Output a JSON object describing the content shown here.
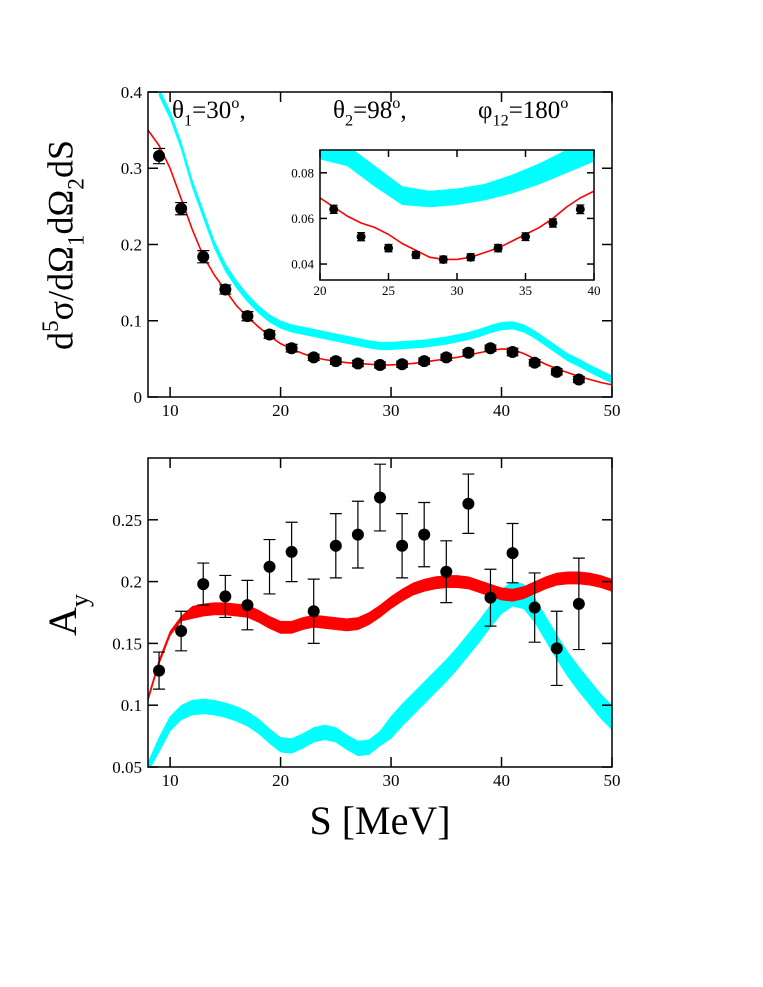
{
  "chart_data": [
    {
      "type": "combo",
      "xlim": [
        8,
        50
      ],
      "ylim": [
        0,
        0.4
      ],
      "xticks": [
        10,
        20,
        30,
        40,
        50
      ],
      "yticks": [
        0,
        0.1,
        0.2,
        0.3,
        0.4
      ],
      "ylabel": [
        "d",
        "5",
        "σ/dΩ",
        "1",
        "dΩ",
        "2",
        "dS"
      ],
      "annotations": [
        [
          "θ",
          "1",
          "=30",
          "o",
          ","
        ],
        [
          "θ",
          "2",
          "=98",
          "o",
          ","
        ],
        [
          "φ",
          "12",
          "=180",
          "o"
        ]
      ],
      "series": [
        {
          "type": "band",
          "color": "#00ffff",
          "x": [
            9,
            10,
            11,
            12,
            13,
            14,
            15,
            16,
            17,
            18,
            19,
            20,
            21,
            22,
            23,
            24,
            25,
            26,
            27,
            28,
            29,
            30,
            31,
            32,
            33,
            34,
            35,
            36,
            37,
            38,
            39,
            40,
            41,
            42,
            43,
            44,
            45,
            46,
            47,
            48,
            49,
            50
          ],
          "lower": [
            0.395,
            0.365,
            0.325,
            0.275,
            0.235,
            0.195,
            0.165,
            0.143,
            0.125,
            0.11,
            0.098,
            0.09,
            0.085,
            0.082,
            0.079,
            0.076,
            0.073,
            0.07,
            0.067,
            0.064,
            0.062,
            0.062,
            0.063,
            0.064,
            0.065,
            0.067,
            0.069,
            0.072,
            0.075,
            0.079,
            0.084,
            0.088,
            0.089,
            0.085,
            0.077,
            0.067,
            0.057,
            0.047,
            0.04,
            0.032,
            0.025,
            0.018
          ],
          "upper": [
            0.405,
            0.375,
            0.335,
            0.285,
            0.245,
            0.205,
            0.175,
            0.153,
            0.135,
            0.12,
            0.108,
            0.1,
            0.095,
            0.092,
            0.089,
            0.086,
            0.083,
            0.08,
            0.077,
            0.074,
            0.072,
            0.072,
            0.073,
            0.074,
            0.075,
            0.077,
            0.079,
            0.082,
            0.085,
            0.089,
            0.094,
            0.098,
            0.099,
            0.095,
            0.087,
            0.077,
            0.067,
            0.057,
            0.05,
            0.042,
            0.035,
            0.028
          ]
        },
        {
          "type": "line",
          "color": "#ff0000",
          "x": [
            8,
            9,
            10,
            11,
            12,
            13,
            14,
            15,
            16,
            17,
            18,
            19,
            20,
            21,
            22,
            23,
            24,
            25,
            26,
            27,
            28,
            29,
            30,
            31,
            32,
            33,
            34,
            35,
            36,
            37,
            38,
            39,
            40,
            41,
            42,
            43,
            44,
            45,
            46,
            47,
            48,
            49,
            50
          ],
          "values": [
            0.35,
            0.33,
            0.3,
            0.26,
            0.22,
            0.185,
            0.16,
            0.14,
            0.12,
            0.105,
            0.092,
            0.08,
            0.07,
            0.063,
            0.057,
            0.052,
            0.049,
            0.047,
            0.045,
            0.044,
            0.043,
            0.042,
            0.042,
            0.043,
            0.044,
            0.046,
            0.048,
            0.05,
            0.052,
            0.055,
            0.058,
            0.061,
            0.063,
            0.062,
            0.057,
            0.05,
            0.043,
            0.037,
            0.032,
            0.027,
            0.023,
            0.019,
            0.016
          ]
        },
        {
          "type": "errorbar",
          "color": "#000000",
          "x": [
            9,
            11,
            13,
            15,
            17,
            19,
            21,
            23,
            25,
            27,
            29,
            31,
            33,
            35,
            37,
            39,
            41,
            43,
            45,
            47
          ],
          "values": [
            0.316,
            0.247,
            0.184,
            0.141,
            0.106,
            0.082,
            0.064,
            0.052,
            0.047,
            0.044,
            0.042,
            0.043,
            0.047,
            0.052,
            0.058,
            0.064,
            0.059,
            0.045,
            0.033,
            0.023
          ],
          "errors": [
            0.01,
            0.008,
            0.008,
            0.006,
            0.006,
            0.005,
            0.005,
            0.004,
            0.004,
            0.004,
            0.004,
            0.004,
            0.004,
            0.004,
            0.004,
            0.004,
            0.005,
            0.004,
            0.004,
            0.004
          ]
        }
      ]
    },
    {
      "type": "combo",
      "xlim": [
        20,
        40
      ],
      "ylim": [
        0.033,
        0.09
      ],
      "xticks": [
        20,
        25,
        30,
        35,
        40
      ],
      "yticks": [
        0.04,
        0.06,
        0.08
      ],
      "series": [
        {
          "type": "band",
          "color": "#00ffff",
          "x": [
            20,
            22,
            24,
            26,
            28,
            30,
            32,
            34,
            36,
            38,
            40
          ],
          "lower": [
            0.086,
            0.083,
            0.074,
            0.066,
            0.065,
            0.066,
            0.068,
            0.071,
            0.075,
            0.08,
            0.085
          ],
          "upper": [
            0.095,
            0.092,
            0.083,
            0.074,
            0.072,
            0.073,
            0.075,
            0.079,
            0.084,
            0.09,
            0.096
          ]
        },
        {
          "type": "line",
          "color": "#ff0000",
          "x": [
            20,
            21,
            22,
            23,
            24,
            25,
            26,
            27,
            28,
            29,
            30,
            31,
            32,
            33,
            34,
            35,
            36,
            37,
            38,
            39,
            40
          ],
          "values": [
            0.069,
            0.065,
            0.061,
            0.058,
            0.056,
            0.053,
            0.049,
            0.046,
            0.043,
            0.042,
            0.042,
            0.043,
            0.045,
            0.047,
            0.05,
            0.053,
            0.056,
            0.06,
            0.065,
            0.069,
            0.072
          ]
        },
        {
          "type": "errorbar",
          "color": "#000000",
          "x": [
            21,
            23,
            25,
            27,
            29,
            31,
            33,
            35,
            37,
            39
          ],
          "values": [
            0.064,
            0.052,
            0.047,
            0.044,
            0.042,
            0.043,
            0.047,
            0.052,
            0.058,
            0.064
          ],
          "errors": [
            0.0018,
            0.0018,
            0.0016,
            0.0015,
            0.0015,
            0.0015,
            0.0016,
            0.0017,
            0.0018,
            0.0019
          ]
        }
      ]
    },
    {
      "type": "combo",
      "xlim": [
        8,
        50
      ],
      "ylim": [
        0.05,
        0.3
      ],
      "xticks": [
        10,
        20,
        30,
        40,
        50
      ],
      "yticks": [
        0.05,
        0.1,
        0.15,
        0.2,
        0.25
      ],
      "ylabel": [
        "A",
        "y"
      ],
      "xlabel": "S [MeV]",
      "series": [
        {
          "type": "band",
          "color": "#00ffff",
          "x": [
            8,
            9,
            10,
            11,
            12,
            13,
            14,
            15,
            16,
            17,
            18,
            19,
            20,
            21,
            22,
            23,
            24,
            25,
            26,
            27,
            28,
            29,
            30,
            31,
            32,
            33,
            34,
            35,
            36,
            37,
            38,
            39,
            40,
            41,
            42,
            43,
            44,
            45,
            46,
            47,
            48,
            49,
            50
          ],
          "lower": [
            0.046,
            0.062,
            0.079,
            0.088,
            0.092,
            0.093,
            0.092,
            0.09,
            0.087,
            0.083,
            0.077,
            0.069,
            0.062,
            0.061,
            0.065,
            0.07,
            0.072,
            0.07,
            0.064,
            0.059,
            0.06,
            0.067,
            0.073,
            0.083,
            0.092,
            0.101,
            0.11,
            0.119,
            0.129,
            0.14,
            0.151,
            0.163,
            0.174,
            0.18,
            0.178,
            0.167,
            0.152,
            0.137,
            0.123,
            0.111,
            0.1,
            0.089,
            0.08
          ],
          "upper": [
            0.054,
            0.074,
            0.091,
            0.1,
            0.104,
            0.105,
            0.104,
            0.102,
            0.099,
            0.095,
            0.089,
            0.081,
            0.074,
            0.073,
            0.077,
            0.082,
            0.084,
            0.082,
            0.076,
            0.071,
            0.072,
            0.079,
            0.091,
            0.101,
            0.11,
            0.119,
            0.128,
            0.137,
            0.147,
            0.158,
            0.169,
            0.181,
            0.194,
            0.2,
            0.198,
            0.187,
            0.172,
            0.157,
            0.143,
            0.131,
            0.12,
            0.109,
            0.1
          ]
        },
        {
          "type": "band",
          "color": "#ff0000",
          "x": [
            8,
            9,
            10,
            11,
            12,
            13,
            14,
            15,
            16,
            17,
            18,
            19,
            20,
            21,
            22,
            23,
            24,
            25,
            26,
            27,
            28,
            29,
            30,
            31,
            32,
            33,
            34,
            35,
            36,
            37,
            38,
            39,
            40,
            41,
            42,
            43,
            44,
            45,
            46,
            47,
            48,
            49,
            50
          ],
          "lower": [
            0.103,
            0.133,
            0.156,
            0.168,
            0.17,
            0.172,
            0.173,
            0.173,
            0.172,
            0.171,
            0.167,
            0.162,
            0.158,
            0.158,
            0.161,
            0.163,
            0.162,
            0.161,
            0.16,
            0.161,
            0.165,
            0.171,
            0.178,
            0.184,
            0.189,
            0.192,
            0.194,
            0.195,
            0.195,
            0.194,
            0.191,
            0.188,
            0.185,
            0.184,
            0.186,
            0.19,
            0.194,
            0.197,
            0.198,
            0.198,
            0.197,
            0.195,
            0.192
          ],
          "upper": [
            0.107,
            0.137,
            0.16,
            0.172,
            0.18,
            0.182,
            0.183,
            0.183,
            0.182,
            0.181,
            0.177,
            0.172,
            0.168,
            0.168,
            0.171,
            0.173,
            0.172,
            0.171,
            0.17,
            0.171,
            0.175,
            0.181,
            0.188,
            0.194,
            0.199,
            0.202,
            0.204,
            0.205,
            0.205,
            0.204,
            0.201,
            0.198,
            0.195,
            0.194,
            0.196,
            0.2,
            0.204,
            0.207,
            0.208,
            0.208,
            0.207,
            0.205,
            0.202
          ]
        },
        {
          "type": "errorbar",
          "color": "#000000",
          "x": [
            9,
            11,
            13,
            15,
            17,
            19,
            21,
            23,
            25,
            27,
            29,
            31,
            33,
            35,
            37,
            39,
            41,
            43,
            45,
            47
          ],
          "values": [
            0.128,
            0.16,
            0.198,
            0.188,
            0.181,
            0.212,
            0.224,
            0.176,
            0.229,
            0.238,
            0.268,
            0.229,
            0.238,
            0.208,
            0.263,
            0.187,
            0.223,
            0.179,
            0.146,
            0.182
          ],
          "errors": [
            0.015,
            0.016,
            0.017,
            0.017,
            0.02,
            0.022,
            0.024,
            0.026,
            0.026,
            0.027,
            0.027,
            0.026,
            0.026,
            0.025,
            0.024,
            0.023,
            0.024,
            0.028,
            0.03,
            0.037
          ]
        }
      ]
    }
  ]
}
